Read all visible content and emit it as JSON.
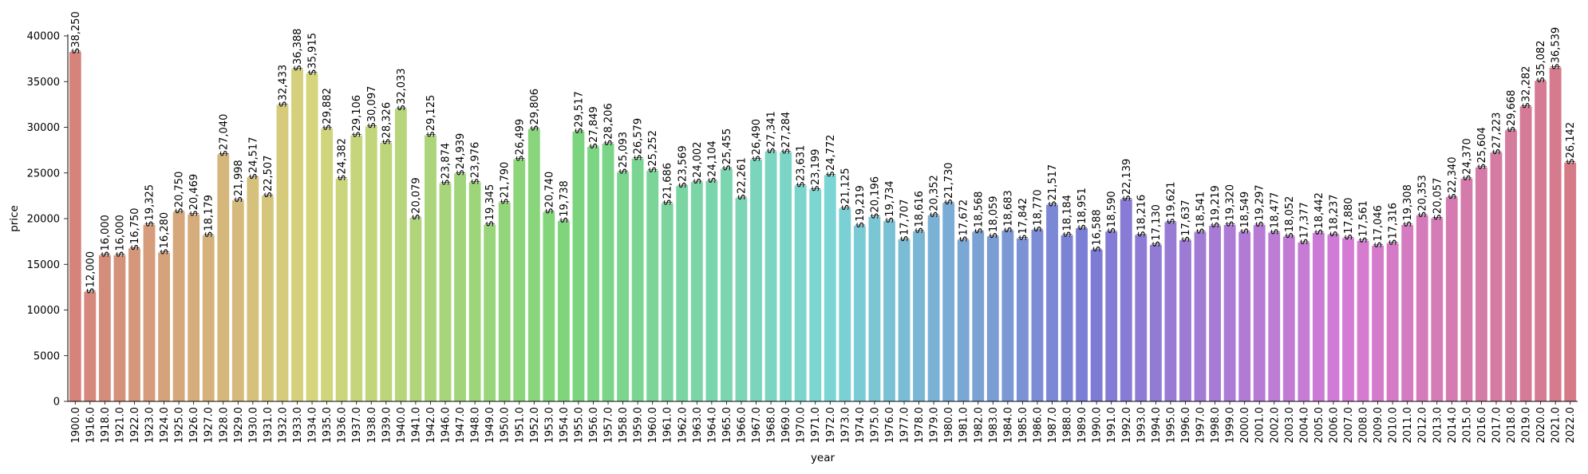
{
  "chart_data": {
    "type": "bar",
    "xlabel": "year",
    "ylabel": "price",
    "ylim": [
      0,
      40000
    ],
    "yticks": [
      0,
      5000,
      10000,
      15000,
      20000,
      25000,
      30000,
      35000,
      40000
    ],
    "categories": [
      "1900.0",
      "1916.0",
      "1918.0",
      "1921.0",
      "1922.0",
      "1923.0",
      "1924.0",
      "1925.0",
      "1926.0",
      "1927.0",
      "1928.0",
      "1929.0",
      "1930.0",
      "1931.0",
      "1932.0",
      "1933.0",
      "1934.0",
      "1935.0",
      "1936.0",
      "1937.0",
      "1938.0",
      "1939.0",
      "1940.0",
      "1941.0",
      "1942.0",
      "1946.0",
      "1947.0",
      "1948.0",
      "1949.0",
      "1950.0",
      "1951.0",
      "1952.0",
      "1953.0",
      "1954.0",
      "1955.0",
      "1956.0",
      "1957.0",
      "1958.0",
      "1959.0",
      "1960.0",
      "1961.0",
      "1962.0",
      "1963.0",
      "1964.0",
      "1965.0",
      "1966.0",
      "1967.0",
      "1968.0",
      "1969.0",
      "1970.0",
      "1971.0",
      "1972.0",
      "1973.0",
      "1974.0",
      "1975.0",
      "1976.0",
      "1977.0",
      "1978.0",
      "1979.0",
      "1980.0",
      "1981.0",
      "1982.0",
      "1983.0",
      "1984.0",
      "1985.0",
      "1986.0",
      "1987.0",
      "1988.0",
      "1989.0",
      "1990.0",
      "1991.0",
      "1992.0",
      "1993.0",
      "1994.0",
      "1995.0",
      "1996.0",
      "1997.0",
      "1998.0",
      "1999.0",
      "2000.0",
      "2001.0",
      "2002.0",
      "2003.0",
      "2004.0",
      "2005.0",
      "2006.0",
      "2007.0",
      "2008.0",
      "2009.0",
      "2010.0",
      "2011.0",
      "2012.0",
      "2013.0",
      "2014.0",
      "2015.0",
      "2016.0",
      "2017.0",
      "2018.0",
      "2019.0",
      "2020.0",
      "2021.0",
      "2022.0"
    ],
    "values": [
      38250,
      12000,
      16000,
      16000,
      16750,
      19325,
      16280,
      20750,
      20469,
      18179,
      27040,
      21998,
      24517,
      22507,
      32433,
      36388,
      35915,
      29882,
      24382,
      29106,
      30097,
      28326,
      32033,
      20079,
      29125,
      23874,
      24939,
      23976,
      19345,
      21790,
      26499,
      29806,
      20740,
      19738,
      29517,
      27849,
      28206,
      25093,
      26579,
      25252,
      21686,
      23569,
      24002,
      24104,
      25455,
      22261,
      26490,
      27341,
      27284,
      23631,
      23199,
      24772,
      21125,
      19219,
      20196,
      19734,
      17707,
      18616,
      20352,
      21730,
      17672,
      18568,
      18059,
      18683,
      17842,
      18770,
      21517,
      18184,
      18951,
      16588,
      18590,
      22139,
      18216,
      17130,
      19621,
      17637,
      18541,
      19219,
      19320,
      18549,
      19297,
      18477,
      18052,
      17377,
      18442,
      18237,
      17880,
      17561,
      17046,
      17316,
      19308,
      20353,
      20057,
      22340,
      24370,
      25604,
      27223,
      29668,
      32282,
      35082,
      36539,
      26142
    ],
    "data_labels": [
      "$38,250",
      "$12,000",
      "$16,000",
      "$16,000",
      "$16,750",
      "$19,325",
      "$16,280",
      "$20,750",
      "$20,469",
      "$18,179",
      "$27,040",
      "$21,998",
      "$24,517",
      "$22,507",
      "$32,433",
      "$36,388",
      "$35,915",
      "$29,882",
      "$24,382",
      "$29,106",
      "$30,097",
      "$28,326",
      "$32,033",
      "$20,079",
      "$29,125",
      "$23,874",
      "$24,939",
      "$23,976",
      "$19,345",
      "$21,790",
      "$26,499",
      "$29,806",
      "$20,740",
      "$19,738",
      "$29,517",
      "$27,849",
      "$28,206",
      "$25,093",
      "$26,579",
      "$25,252",
      "$21,686",
      "$23,569",
      "$24,002",
      "$24,104",
      "$25,455",
      "$22,261",
      "$26,490",
      "$27,341",
      "$27,284",
      "$23,631",
      "$23,199",
      "$24,772",
      "$21,125",
      "$19,219",
      "$20,196",
      "$19,734",
      "$17,707",
      "$18,616",
      "$20,352",
      "$21,730",
      "$17,672",
      "$18,568",
      "$18,059",
      "$18,683",
      "$17,842",
      "$18,770",
      "$21,517",
      "$18,184",
      "$18,951",
      "$16,588",
      "$18,590",
      "$22,139",
      "$18,216",
      "$17,130",
      "$19,621",
      "$17,637",
      "$18,541",
      "$19,219",
      "$19,320",
      "$18,549",
      "$19,297",
      "$18,477",
      "$18,052",
      "$17,377",
      "$18,442",
      "$18,237",
      "$17,880",
      "$17,561",
      "$17,046",
      "$17,316",
      "$19,308",
      "$20,353",
      "$20,057",
      "$22,340",
      "$24,370",
      "$25,604",
      "$27,223",
      "$29,668",
      "$32,282",
      "$35,082",
      "$36,539",
      "$26,142"
    ],
    "grid": false,
    "legend": "none",
    "palette": "husl"
  }
}
